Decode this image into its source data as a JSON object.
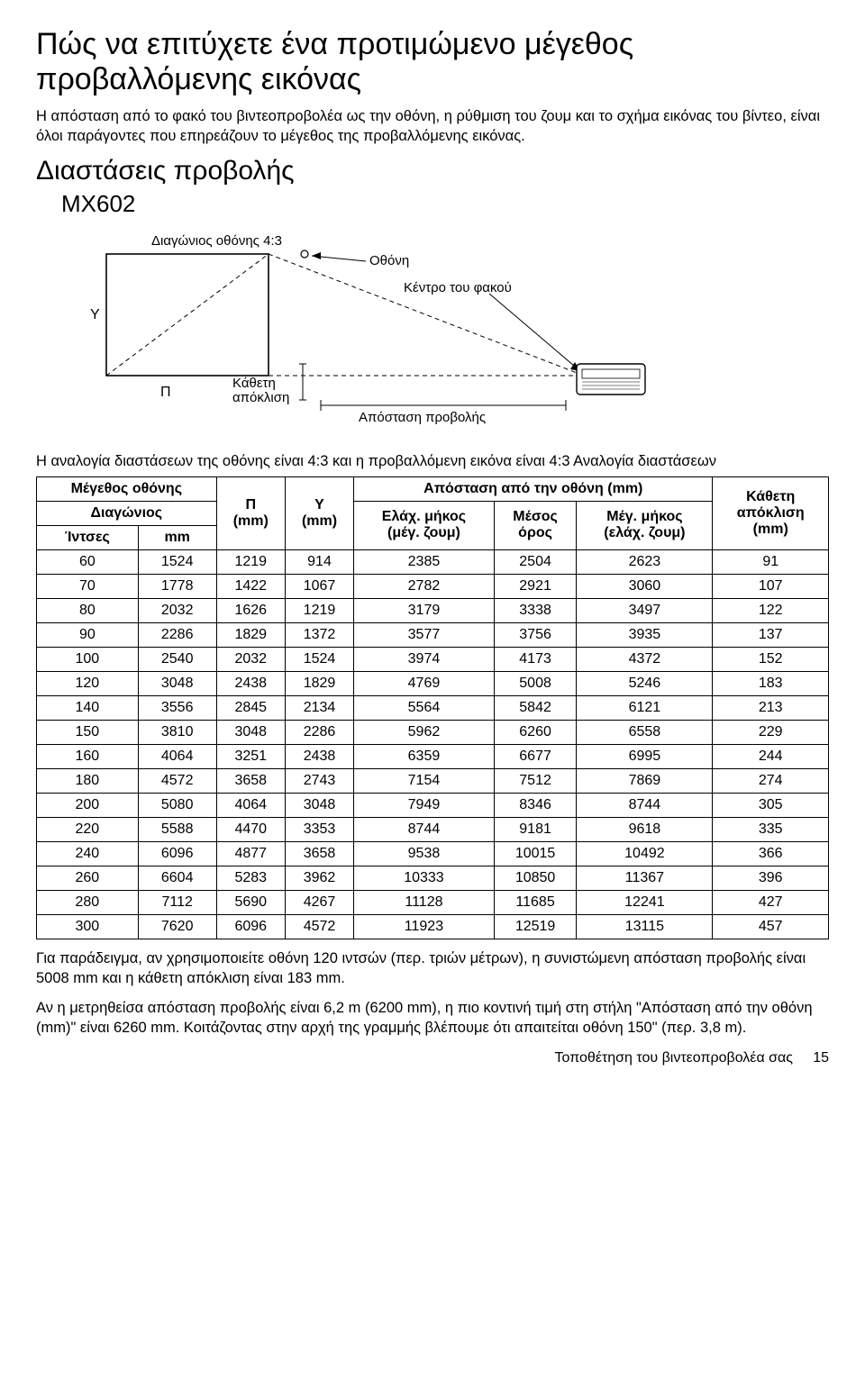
{
  "title": "Πώς να επιτύχετε ένα προτιμώμενο μέγεθος προβαλλόμενης εικόνας",
  "intro": "Η απόσταση από το φακό του βιντεοπροβολέα ως την οθόνη, η ρύθμιση του ζουμ και το σχήμα εικόνας του βίντεο, είναι όλοι παράγοντες που επηρεάζουν το μέγεθος της προβαλλόμενης εικόνας.",
  "section2": "Διαστάσεις προβολής",
  "model": "MX602",
  "diagram": {
    "diag_label": "Διαγώνιος οθόνης 4:3",
    "screen_label": "Οθόνη",
    "lens_center": "Κέντρο του φακού",
    "Y": "Υ",
    "P": "Π",
    "vertical_offset": "Κάθετη\nαπόκλιση",
    "projection_distance": "Απόσταση προβολής"
  },
  "ratio_text": "Η αναλογία διαστάσεων της οθόνης είναι 4:3 και η προβαλλόμενη εικόνα είναι 4:3 Αναλογία διαστάσεων",
  "table": {
    "headers": {
      "screen_size": "Μέγεθος οθόνης",
      "diagonal": "Διαγώνιος",
      "inches": "Ίντσες",
      "mm": "mm",
      "P": "Π\n(mm)",
      "Y": "Υ\n(mm)",
      "distance_group": "Απόσταση από την οθόνη (mm)",
      "min": "Ελάχ. μήκος\n(μέγ. ζουμ)",
      "avg": "Μέσος\nόρος",
      "max": "Μέγ. μήκος\n(ελάχ. ζουμ)",
      "voffset": "Κάθετη\nαπόκλιση\n(mm)"
    },
    "rows": [
      [
        60,
        1524,
        1219,
        914,
        2385,
        2504,
        2623,
        91
      ],
      [
        70,
        1778,
        1422,
        1067,
        2782,
        2921,
        3060,
        107
      ],
      [
        80,
        2032,
        1626,
        1219,
        3179,
        3338,
        3497,
        122
      ],
      [
        90,
        2286,
        1829,
        1372,
        3577,
        3756,
        3935,
        137
      ],
      [
        100,
        2540,
        2032,
        1524,
        3974,
        4173,
        4372,
        152
      ],
      [
        120,
        3048,
        2438,
        1829,
        4769,
        5008,
        5246,
        183
      ],
      [
        140,
        3556,
        2845,
        2134,
        5564,
        5842,
        6121,
        213
      ],
      [
        150,
        3810,
        3048,
        2286,
        5962,
        6260,
        6558,
        229
      ],
      [
        160,
        4064,
        3251,
        2438,
        6359,
        6677,
        6995,
        244
      ],
      [
        180,
        4572,
        3658,
        2743,
        7154,
        7512,
        7869,
        274
      ],
      [
        200,
        5080,
        4064,
        3048,
        7949,
        8346,
        8744,
        305
      ],
      [
        220,
        5588,
        4470,
        3353,
        8744,
        9181,
        9618,
        335
      ],
      [
        240,
        6096,
        4877,
        3658,
        9538,
        10015,
        10492,
        366
      ],
      [
        260,
        6604,
        5283,
        3962,
        10333,
        10850,
        11367,
        396
      ],
      [
        280,
        7112,
        5690,
        4267,
        11128,
        11685,
        12241,
        427
      ],
      [
        300,
        7620,
        6096,
        4572,
        11923,
        12519,
        13115,
        457
      ]
    ]
  },
  "example1": "Για παράδειγμα, αν χρησιμοποιείτε οθόνη 120 ιντσών (περ. τριών μέτρων), η συνιστώμενη απόσταση προβολής είναι 5008 mm και η κάθετη απόκλιση είναι 183 mm.",
  "example2_a": "Αν η μετρηθείσα απόσταση προβολής είναι 6,2 m (6200 mm), η πιο κοντινή τιμή στη στήλη ",
  "example2_q": "\"Απόσταση από την οθόνη (mm)\"",
  "example2_b": " είναι 6260 mm. Κοιτάζοντας στην αρχή της γραμμής βλέπουμε ότι απαιτείται οθόνη 150\" (περ. 3,8 m).",
  "footer_text": "Τοποθέτηση του βιντεοπροβολέα σας",
  "footer_page": "15"
}
